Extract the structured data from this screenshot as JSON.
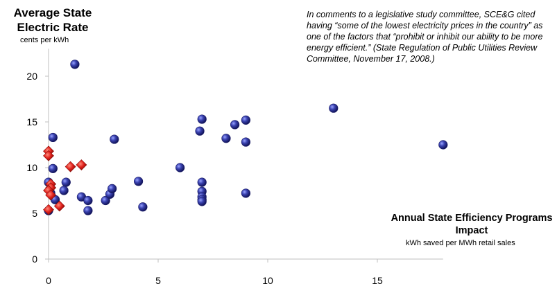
{
  "chart_data": {
    "type": "scatter",
    "ylabel": "Average State Electric Rate",
    "ylabel_unit": "cents per kWh",
    "xlabel": "Annual State Efficiency Programs Impact",
    "xlabel_unit": "kWh saved per MWh retail sales",
    "annotation": "In comments to a legislative study  committee, SCE&G cited having “some of the lowest electricity prices in the country” as one of the factors that “prohibit or inhibit our ability to be more energy efficient.” (State Regulation of Public Utilities Review Committee, November 17, 2008.)",
    "xlim": [
      0,
      18
    ],
    "ylim": [
      0,
      23
    ],
    "x_ticks": [
      0,
      5,
      10,
      15
    ],
    "y_ticks": [
      0,
      5,
      10,
      15,
      20
    ],
    "grid": false,
    "colors": {
      "blue_points": "#2a2f8f",
      "red_points": "#e0201b",
      "axis": "#bfbfbf"
    },
    "series": [
      {
        "points": [
          [
            0.0,
            5.3
          ],
          [
            0.3,
            6.5
          ],
          [
            0.1,
            7.2
          ],
          [
            0.0,
            8.4
          ],
          [
            0.2,
            9.9
          ],
          [
            0.2,
            13.3
          ],
          [
            0.8,
            8.4
          ],
          [
            0.7,
            7.5
          ],
          [
            1.2,
            21.3
          ],
          [
            1.5,
            6.8
          ],
          [
            1.8,
            6.4
          ],
          [
            1.8,
            5.3
          ],
          [
            3.0,
            13.1
          ],
          [
            2.6,
            6.4
          ],
          [
            2.8,
            7.1
          ],
          [
            2.9,
            7.7
          ],
          [
            4.1,
            8.5
          ],
          [
            4.3,
            5.7
          ],
          [
            6.0,
            10.0
          ],
          [
            6.9,
            14.0
          ],
          [
            7.0,
            15.3
          ],
          [
            7.0,
            8.4
          ],
          [
            7.0,
            7.4
          ],
          [
            7.0,
            6.8
          ],
          [
            7.0,
            6.5
          ],
          [
            7.0,
            6.3
          ],
          [
            8.1,
            13.2
          ],
          [
            8.5,
            14.7
          ],
          [
            9.0,
            15.2
          ],
          [
            9.0,
            12.8
          ],
          [
            9.0,
            7.2
          ],
          [
            13.0,
            16.5
          ],
          [
            18.0,
            12.5
          ]
        ]
      },
      {
        "points": [
          [
            0.0,
            11.8
          ],
          [
            0.0,
            11.3
          ],
          [
            0.1,
            8.2
          ],
          [
            0.1,
            7.8
          ],
          [
            0.0,
            7.5
          ],
          [
            0.1,
            7.0
          ],
          [
            0.0,
            5.4
          ],
          [
            0.5,
            5.8
          ],
          [
            1.0,
            10.1
          ],
          [
            1.5,
            10.3
          ]
        ]
      }
    ]
  }
}
